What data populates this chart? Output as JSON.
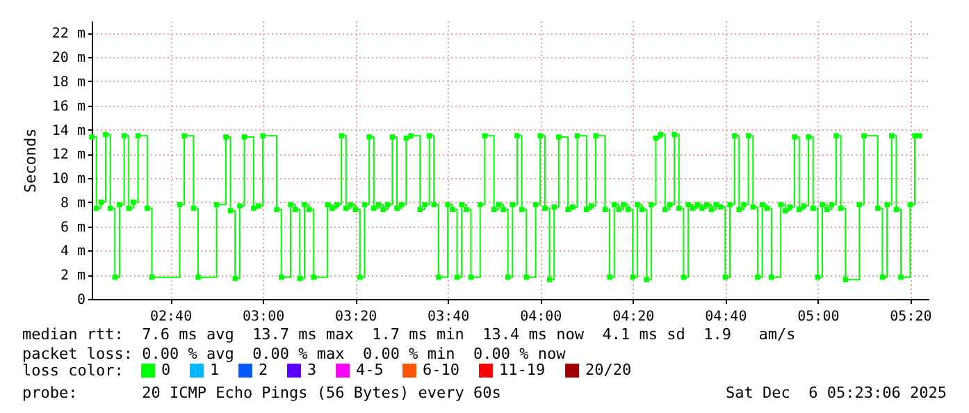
{
  "chart_data": {
    "type": "step",
    "ylabel": "Seconds",
    "legend_title": "loss color:",
    "legend": "bottom",
    "grid": true,
    "marker": "square",
    "x": [
      "2025-12-06T02:23",
      "2025-12-06T02:24",
      "2025-12-06T02:25",
      "2025-12-06T02:26",
      "2025-12-06T02:27",
      "2025-12-06T02:28",
      "2025-12-06T02:29",
      "2025-12-06T02:30",
      "2025-12-06T02:31",
      "2025-12-06T02:32",
      "2025-12-06T02:33",
      "2025-12-06T02:35",
      "2025-12-06T02:36",
      "2025-12-06T02:42",
      "2025-12-06T02:43",
      "2025-12-06T02:45",
      "2025-12-06T02:46",
      "2025-12-06T02:50",
      "2025-12-06T02:52",
      "2025-12-06T02:53",
      "2025-12-06T02:54",
      "2025-12-06T02:55",
      "2025-12-06T02:56",
      "2025-12-06T02:58",
      "2025-12-06T02:59",
      "2025-12-06T03:00",
      "2025-12-06T03:03",
      "2025-12-06T03:04",
      "2025-12-06T03:06",
      "2025-12-06T03:07",
      "2025-12-06T03:08",
      "2025-12-06T03:09",
      "2025-12-06T03:10",
      "2025-12-06T03:11",
      "2025-12-06T03:14",
      "2025-12-06T03:15",
      "2025-12-06T03:16",
      "2025-12-06T03:17",
      "2025-12-06T03:18",
      "2025-12-06T03:19",
      "2025-12-06T03:20",
      "2025-12-06T03:21",
      "2025-12-06T03:22",
      "2025-12-06T03:23",
      "2025-12-06T03:24",
      "2025-12-06T03:25",
      "2025-12-06T03:26",
      "2025-12-06T03:27",
      "2025-12-06T03:28",
      "2025-12-06T03:29",
      "2025-12-06T03:30",
      "2025-12-06T03:31",
      "2025-12-06T03:32",
      "2025-12-06T03:34",
      "2025-12-06T03:35",
      "2025-12-06T03:36",
      "2025-12-06T03:37",
      "2025-12-06T03:38",
      "2025-12-06T03:40",
      "2025-12-06T03:41",
      "2025-12-06T03:42",
      "2025-12-06T03:43",
      "2025-12-06T03:44",
      "2025-12-06T03:45",
      "2025-12-06T03:47",
      "2025-12-06T03:48",
      "2025-12-06T03:50",
      "2025-12-06T03:51",
      "2025-12-06T03:52",
      "2025-12-06T03:53",
      "2025-12-06T03:54",
      "2025-12-06T03:55",
      "2025-12-06T03:56",
      "2025-12-06T03:57",
      "2025-12-06T03:59",
      "2025-12-06T04:00",
      "2025-12-06T04:01",
      "2025-12-06T04:02",
      "2025-12-06T04:03",
      "2025-12-06T04:04",
      "2025-12-06T04:06",
      "2025-12-06T04:07",
      "2025-12-06T04:08",
      "2025-12-06T04:10",
      "2025-12-06T04:11",
      "2025-12-06T04:12",
      "2025-12-06T04:14",
      "2025-12-06T04:15",
      "2025-12-06T04:16",
      "2025-12-06T04:17",
      "2025-12-06T04:18",
      "2025-12-06T04:19",
      "2025-12-06T04:20",
      "2025-12-06T04:21",
      "2025-12-06T04:22",
      "2025-12-06T04:23",
      "2025-12-06T04:24",
      "2025-12-06T04:25",
      "2025-12-06T04:26",
      "2025-12-06T04:27",
      "2025-12-06T04:28",
      "2025-12-06T04:29",
      "2025-12-06T04:30",
      "2025-12-06T04:31",
      "2025-12-06T04:32",
      "2025-12-06T04:33",
      "2025-12-06T04:34",
      "2025-12-06T04:35",
      "2025-12-06T04:36",
      "2025-12-06T04:37",
      "2025-12-06T04:38",
      "2025-12-06T04:39",
      "2025-12-06T04:40",
      "2025-12-06T04:41",
      "2025-12-06T04:42",
      "2025-12-06T04:43",
      "2025-12-06T04:44",
      "2025-12-06T04:45",
      "2025-12-06T04:46",
      "2025-12-06T04:47",
      "2025-12-06T04:48",
      "2025-12-06T04:49",
      "2025-12-06T04:50",
      "2025-12-06T04:52",
      "2025-12-06T04:53",
      "2025-12-06T04:54",
      "2025-12-06T04:55",
      "2025-12-06T04:56",
      "2025-12-06T04:57",
      "2025-12-06T04:58",
      "2025-12-06T04:59",
      "2025-12-06T05:00",
      "2025-12-06T05:01",
      "2025-12-06T05:02",
      "2025-12-06T05:03",
      "2025-12-06T05:04",
      "2025-12-06T05:05",
      "2025-12-06T05:06",
      "2025-12-06T05:09",
      "2025-12-06T05:10",
      "2025-12-06T05:13",
      "2025-12-06T05:14",
      "2025-12-06T05:15",
      "2025-12-06T05:16",
      "2025-12-06T05:17",
      "2025-12-06T05:18",
      "2025-12-06T05:20",
      "2025-12-06T05:21",
      "2025-12-06T05:22"
    ],
    "series": [
      {
        "name": "0",
        "color": "#00ff00",
        "values": [
          13.4,
          7.5,
          8.0,
          13.6,
          7.5,
          1.8,
          7.8,
          13.5,
          7.5,
          8.0,
          13.5,
          7.5,
          1.8,
          7.8,
          13.5,
          7.5,
          1.8,
          7.8,
          13.4,
          7.3,
          1.7,
          7.7,
          13.4,
          7.5,
          7.7,
          13.5,
          7.4,
          1.8,
          7.8,
          7.4,
          1.7,
          7.8,
          7.4,
          1.8,
          7.8,
          7.5,
          7.8,
          13.5,
          7.5,
          7.8,
          7.4,
          1.8,
          7.8,
          13.4,
          7.5,
          7.8,
          7.4,
          7.8,
          13.4,
          7.5,
          7.8,
          13.3,
          13.5,
          7.4,
          7.8,
          13.5,
          7.8,
          1.8,
          7.8,
          7.4,
          1.8,
          7.8,
          7.4,
          1.8,
          7.8,
          13.5,
          7.4,
          7.8,
          7.4,
          1.8,
          7.8,
          13.5,
          7.4,
          1.8,
          7.8,
          13.5,
          7.5,
          1.6,
          7.6,
          13.4,
          7.4,
          7.6,
          13.5,
          7.4,
          7.7,
          13.5,
          7.4,
          1.8,
          7.8,
          7.4,
          7.8,
          7.4,
          1.8,
          7.8,
          7.4,
          1.6,
          7.8,
          13.3,
          13.6,
          7.4,
          7.8,
          13.6,
          7.5,
          1.8,
          7.8,
          7.5,
          7.8,
          7.5,
          7.8,
          7.4,
          7.8,
          7.6,
          1.8,
          7.8,
          13.5,
          7.4,
          7.8,
          13.5,
          7.6,
          1.8,
          7.8,
          7.5,
          1.8,
          7.8,
          7.3,
          7.6,
          13.4,
          7.4,
          7.7,
          13.4,
          7.5,
          1.8,
          7.8,
          7.4,
          7.8,
          13.5,
          7.5,
          1.6,
          7.8,
          13.5,
          7.5,
          1.8,
          7.8,
          13.5,
          7.4,
          1.8,
          7.8,
          13.5,
          13.5
        ]
      },
      {
        "name": "1",
        "color": "#00b8ff",
        "values": [
          null,
          null,
          null,
          null,
          null,
          null,
          null,
          null,
          null,
          null,
          null,
          null,
          null,
          null,
          null,
          null,
          null,
          null,
          null,
          null,
          null,
          null,
          null,
          null,
          null,
          null,
          null,
          null,
          null,
          null,
          null,
          null,
          null,
          null,
          null,
          null,
          null,
          null,
          null,
          null,
          null,
          null,
          null,
          null,
          null,
          null,
          null,
          null,
          null,
          null,
          null,
          null,
          null,
          null,
          null,
          null,
          null,
          null,
          null,
          null,
          null,
          null,
          null,
          null,
          null,
          null,
          null,
          null,
          null,
          null,
          null,
          null,
          null,
          null,
          null,
          null,
          null,
          null,
          null,
          null,
          null,
          null,
          null,
          null,
          null,
          null,
          null,
          null,
          null,
          null,
          null,
          null,
          null,
          null,
          null,
          null,
          null,
          null,
          null,
          null,
          null,
          null,
          null,
          null,
          null,
          null,
          null,
          null,
          null,
          null,
          null,
          null,
          null,
          null,
          null,
          null,
          null,
          null,
          null,
          null,
          null,
          null,
          null,
          null,
          null,
          null,
          null,
          null,
          null,
          null,
          null,
          null,
          null,
          null,
          null,
          null,
          null,
          null,
          null,
          null,
          null,
          null,
          null,
          null,
          null,
          null,
          null,
          null,
          null
        ]
      },
      {
        "name": "2",
        "color": "#0059ff",
        "values": [
          null,
          null,
          null,
          null,
          null,
          null,
          null,
          null,
          null,
          null,
          null,
          null,
          null,
          null,
          null,
          null,
          null,
          null,
          null,
          null,
          null,
          null,
          null,
          null,
          null,
          null,
          null,
          null,
          null,
          null,
          null,
          null,
          null,
          null,
          null,
          null,
          null,
          null,
          null,
          null,
          null,
          null,
          null,
          null,
          null,
          null,
          null,
          null,
          null,
          null,
          null,
          null,
          null,
          null,
          null,
          null,
          null,
          null,
          null,
          null,
          null,
          null,
          null,
          null,
          null,
          null,
          null,
          null,
          null,
          null,
          null,
          null,
          null,
          null,
          null,
          null,
          null,
          null,
          null,
          null,
          null,
          null,
          null,
          null,
          null,
          null,
          null,
          null,
          null,
          null,
          null,
          null,
          null,
          null,
          null,
          null,
          null,
          null,
          null,
          null,
          null,
          null,
          null,
          null,
          null,
          null,
          null,
          null,
          null,
          null,
          null,
          null,
          null,
          null,
          null,
          null,
          null,
          null,
          null,
          null,
          null,
          null,
          null,
          null,
          null,
          null,
          null,
          null,
          null,
          null,
          null,
          null,
          null,
          null,
          null,
          null,
          null,
          null,
          null,
          null,
          null,
          null,
          null,
          null,
          null,
          null,
          null,
          null,
          null
        ]
      },
      {
        "name": "3",
        "color": "#5e00ff",
        "values": [
          null,
          null,
          null,
          null,
          null,
          null,
          null,
          null,
          null,
          null,
          null,
          null,
          null,
          null,
          null,
          null,
          null,
          null,
          null,
          null,
          null,
          null,
          null,
          null,
          null,
          null,
          null,
          null,
          null,
          null,
          null,
          null,
          null,
          null,
          null,
          null,
          null,
          null,
          null,
          null,
          null,
          null,
          null,
          null,
          null,
          null,
          null,
          null,
          null,
          null,
          null,
          null,
          null,
          null,
          null,
          null,
          null,
          null,
          null,
          null,
          null,
          null,
          null,
          null,
          null,
          null,
          null,
          null,
          null,
          null,
          null,
          null,
          null,
          null,
          null,
          null,
          null,
          null,
          null,
          null,
          null,
          null,
          null,
          null,
          null,
          null,
          null,
          null,
          null,
          null,
          null,
          null,
          null,
          null,
          null,
          null,
          null,
          null,
          null,
          null,
          null,
          null,
          null,
          null,
          null,
          null,
          null,
          null,
          null,
          null,
          null,
          null,
          null,
          null,
          null,
          null,
          null,
          null,
          null,
          null,
          null,
          null,
          null,
          null,
          null,
          null,
          null,
          null,
          null,
          null,
          null,
          null,
          null,
          null,
          null,
          null,
          null,
          null,
          null,
          null,
          null,
          null,
          null,
          null,
          null,
          null,
          null,
          null,
          null
        ]
      },
      {
        "name": "4-5",
        "color": "#ff00fe",
        "values": [
          null,
          null,
          null,
          null,
          null,
          null,
          null,
          null,
          null,
          null,
          null,
          null,
          null,
          null,
          null,
          null,
          null,
          null,
          null,
          null,
          null,
          null,
          null,
          null,
          null,
          null,
          null,
          null,
          null,
          null,
          null,
          null,
          null,
          null,
          null,
          null,
          null,
          null,
          null,
          null,
          null,
          null,
          null,
          null,
          null,
          null,
          null,
          null,
          null,
          null,
          null,
          null,
          null,
          null,
          null,
          null,
          null,
          null,
          null,
          null,
          null,
          null,
          null,
          null,
          null,
          null,
          null,
          null,
          null,
          null,
          null,
          null,
          null,
          null,
          null,
          null,
          null,
          null,
          null,
          null,
          null,
          null,
          null,
          null,
          null,
          null,
          null,
          null,
          null,
          null,
          null,
          null,
          null,
          null,
          null,
          null,
          null,
          null,
          null,
          null,
          null,
          null,
          null,
          null,
          null,
          null,
          null,
          null,
          null,
          null,
          null,
          null,
          null,
          null,
          null,
          null,
          null,
          null,
          null,
          null,
          null,
          null,
          null,
          null,
          null,
          null,
          null,
          null,
          null,
          null,
          null,
          null,
          null,
          null,
          null,
          null,
          null,
          null,
          null,
          null,
          null,
          null,
          null,
          null,
          null,
          null,
          null,
          null,
          null
        ]
      },
      {
        "name": "6-10",
        "color": "#ff5500",
        "values": [
          null,
          null,
          null,
          null,
          null,
          null,
          null,
          null,
          null,
          null,
          null,
          null,
          null,
          null,
          null,
          null,
          null,
          null,
          null,
          null,
          null,
          null,
          null,
          null,
          null,
          null,
          null,
          null,
          null,
          null,
          null,
          null,
          null,
          null,
          null,
          null,
          null,
          null,
          null,
          null,
          null,
          null,
          null,
          null,
          null,
          null,
          null,
          null,
          null,
          null,
          null,
          null,
          null,
          null,
          null,
          null,
          null,
          null,
          null,
          null,
          null,
          null,
          null,
          null,
          null,
          null,
          null,
          null,
          null,
          null,
          null,
          null,
          null,
          null,
          null,
          null,
          null,
          null,
          null,
          null,
          null,
          null,
          null,
          null,
          null,
          null,
          null,
          null,
          null,
          null,
          null,
          null,
          null,
          null,
          null,
          null,
          null,
          null,
          null,
          null,
          null,
          null,
          null,
          null,
          null,
          null,
          null,
          null,
          null,
          null,
          null,
          null,
          null,
          null,
          null,
          null,
          null,
          null,
          null,
          null,
          null,
          null,
          null,
          null,
          null,
          null,
          null,
          null,
          null,
          null,
          null,
          null,
          null,
          null,
          null,
          null,
          null,
          null,
          null,
          null,
          null,
          null,
          null,
          null,
          null,
          null,
          null,
          null,
          null
        ]
      },
      {
        "name": "11-19",
        "color": "#ff0000",
        "values": [
          null,
          null,
          null,
          null,
          null,
          null,
          null,
          null,
          null,
          null,
          null,
          null,
          null,
          null,
          null,
          null,
          null,
          null,
          null,
          null,
          null,
          null,
          null,
          null,
          null,
          null,
          null,
          null,
          null,
          null,
          null,
          null,
          null,
          null,
          null,
          null,
          null,
          null,
          null,
          null,
          null,
          null,
          null,
          null,
          null,
          null,
          null,
          null,
          null,
          null,
          null,
          null,
          null,
          null,
          null,
          null,
          null,
          null,
          null,
          null,
          null,
          null,
          null,
          null,
          null,
          null,
          null,
          null,
          null,
          null,
          null,
          null,
          null,
          null,
          null,
          null,
          null,
          null,
          null,
          null,
          null,
          null,
          null,
          null,
          null,
          null,
          null,
          null,
          null,
          null,
          null,
          null,
          null,
          null,
          null,
          null,
          null,
          null,
          null,
          null,
          null,
          null,
          null,
          null,
          null,
          null,
          null,
          null,
          null,
          null,
          null,
          null,
          null,
          null,
          null,
          null,
          null,
          null,
          null,
          null,
          null,
          null,
          null,
          null,
          null,
          null,
          null,
          null,
          null,
          null,
          null,
          null,
          null,
          null,
          null,
          null,
          null,
          null,
          null,
          null,
          null,
          null,
          null,
          null,
          null,
          null,
          null,
          null,
          null
        ]
      },
      {
        "name": "20/20",
        "color": "#a10000",
        "values": [
          null,
          null,
          null,
          null,
          null,
          null,
          null,
          null,
          null,
          null,
          null,
          null,
          null,
          null,
          null,
          null,
          null,
          null,
          null,
          null,
          null,
          null,
          null,
          null,
          null,
          null,
          null,
          null,
          null,
          null,
          null,
          null,
          null,
          null,
          null,
          null,
          null,
          null,
          null,
          null,
          null,
          null,
          null,
          null,
          null,
          null,
          null,
          null,
          null,
          null,
          null,
          null,
          null,
          null,
          null,
          null,
          null,
          null,
          null,
          null,
          null,
          null,
          null,
          null,
          null,
          null,
          null,
          null,
          null,
          null,
          null,
          null,
          null,
          null,
          null,
          null,
          null,
          null,
          null,
          null,
          null,
          null,
          null,
          null,
          null,
          null,
          null,
          null,
          null,
          null,
          null,
          null,
          null,
          null,
          null,
          null,
          null,
          null,
          null,
          null,
          null,
          null,
          null,
          null,
          null,
          null,
          null,
          null,
          null,
          null,
          null,
          null,
          null,
          null,
          null,
          null,
          null,
          null,
          null,
          null,
          null,
          null,
          null,
          null,
          null,
          null,
          null,
          null,
          null,
          null,
          null,
          null,
          null,
          null,
          null,
          null,
          null,
          null,
          null,
          null,
          null,
          null,
          null,
          null,
          null,
          null,
          null,
          null,
          null
        ]
      }
    ],
    "xlim": [
      "2025-12-06T02:23",
      "2025-12-06T05:24"
    ],
    "xticks": [
      {
        "value": "2025-12-06T02:40",
        "label": "02:40"
      },
      {
        "value": "2025-12-06T03:00",
        "label": "03:00"
      },
      {
        "value": "2025-12-06T03:20",
        "label": "03:20"
      },
      {
        "value": "2025-12-06T03:40",
        "label": "03:40"
      },
      {
        "value": "2025-12-06T04:00",
        "label": "04:00"
      },
      {
        "value": "2025-12-06T04:20",
        "label": "04:20"
      },
      {
        "value": "2025-12-06T04:40",
        "label": "04:40"
      },
      {
        "value": "2025-12-06T05:00",
        "label": "05:00"
      },
      {
        "value": "2025-12-06T05:20",
        "label": "05:20"
      }
    ],
    "ylim": [
      0,
      23
    ],
    "yticks": [
      0,
      {
        "value": 2,
        "label": "2 m"
      },
      {
        "value": 4,
        "label": "4 m"
      },
      {
        "value": 6,
        "label": "6 m"
      },
      {
        "value": 8,
        "label": "8 m"
      },
      {
        "value": 10,
        "label": "10 m"
      },
      {
        "value": 12,
        "label": "12 m"
      },
      {
        "value": 14,
        "label": "14 m"
      },
      {
        "value": 16,
        "label": "16 m"
      },
      {
        "value": 18,
        "label": "18 m"
      },
      {
        "value": 20,
        "label": "20 m"
      },
      {
        "value": 22,
        "label": "22 m"
      }
    ],
    "annotations": [
      "median rtt:  7.6 ms avg  13.7 ms max  1.7 ms min  13.4 ms now  4.1 ms sd  1.9   am/s",
      "packet loss: 0.00 % avg  0.00 % max  0.00 % min  0.00 % now",
      "probe:       20 ICMP Echo Pings (56 Bytes) every 60s",
      "Sat Dec  6 05:23:06 2025"
    ]
  }
}
